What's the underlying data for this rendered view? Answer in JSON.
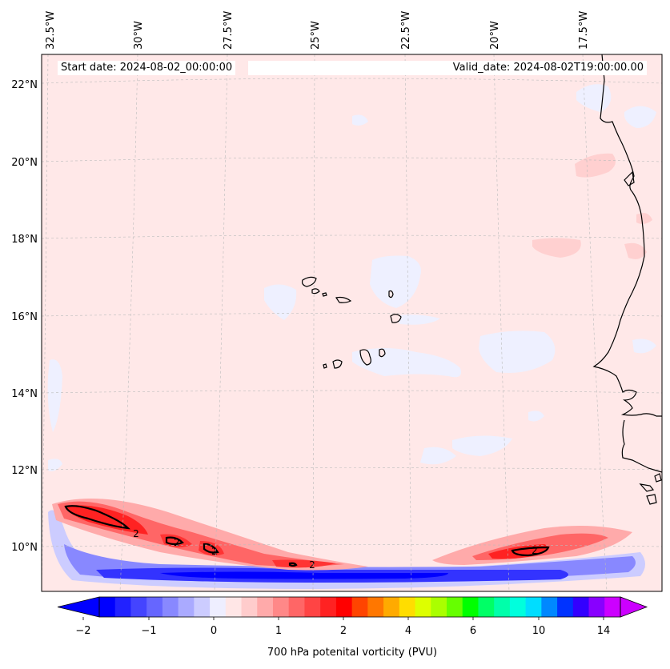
{
  "map": {
    "start_date_label": "Start date: 2024-08-02_00:00:00",
    "valid_date_label": "Valid_date: 2024-08-02T19:00:00.00",
    "lon_ticks": [
      "32.5°W",
      "30°W",
      "27.5°W",
      "25°W",
      "22.5°W",
      "20°W",
      "17.5°W"
    ],
    "lat_ticks": [
      "22°N",
      "20°N",
      "18°N",
      "16°N",
      "14°N",
      "12°N",
      "10°N"
    ],
    "contour_labels": [
      "2",
      "2",
      "2",
      "2",
      "2"
    ],
    "colors": {
      "land_outline": "#000000",
      "background_field": "#ffe8e8",
      "weak_negative": "#eef0ff",
      "strong_negative": "#0000ff",
      "strong_positive": "#ff0000"
    }
  },
  "colorbar": {
    "label": "700 hPa potenital vorticity (PVU)",
    "tick_labels": [
      "−2",
      "−1",
      "0",
      "1",
      "2",
      "4",
      "6",
      "10",
      "14"
    ],
    "colors": [
      "#0000ff",
      "#2222ff",
      "#4444ff",
      "#6666ff",
      "#8888ff",
      "#aaaaff",
      "#ccccff",
      "#eeeeff",
      "#ffe6e6",
      "#ffcccc",
      "#ffaaaa",
      "#ff8888",
      "#ff6666",
      "#ff4444",
      "#ff2222",
      "#ff0000",
      "#ff4400",
      "#ff7700",
      "#ffaa00",
      "#ffdd00",
      "#ddff00",
      "#aaff00",
      "#66ff00",
      "#00ff00",
      "#00ff66",
      "#00ffaa",
      "#00ffdd",
      "#00ddff",
      "#0088ff",
      "#0033ff",
      "#3300ff",
      "#8800ff",
      "#cc00ff"
    ]
  }
}
